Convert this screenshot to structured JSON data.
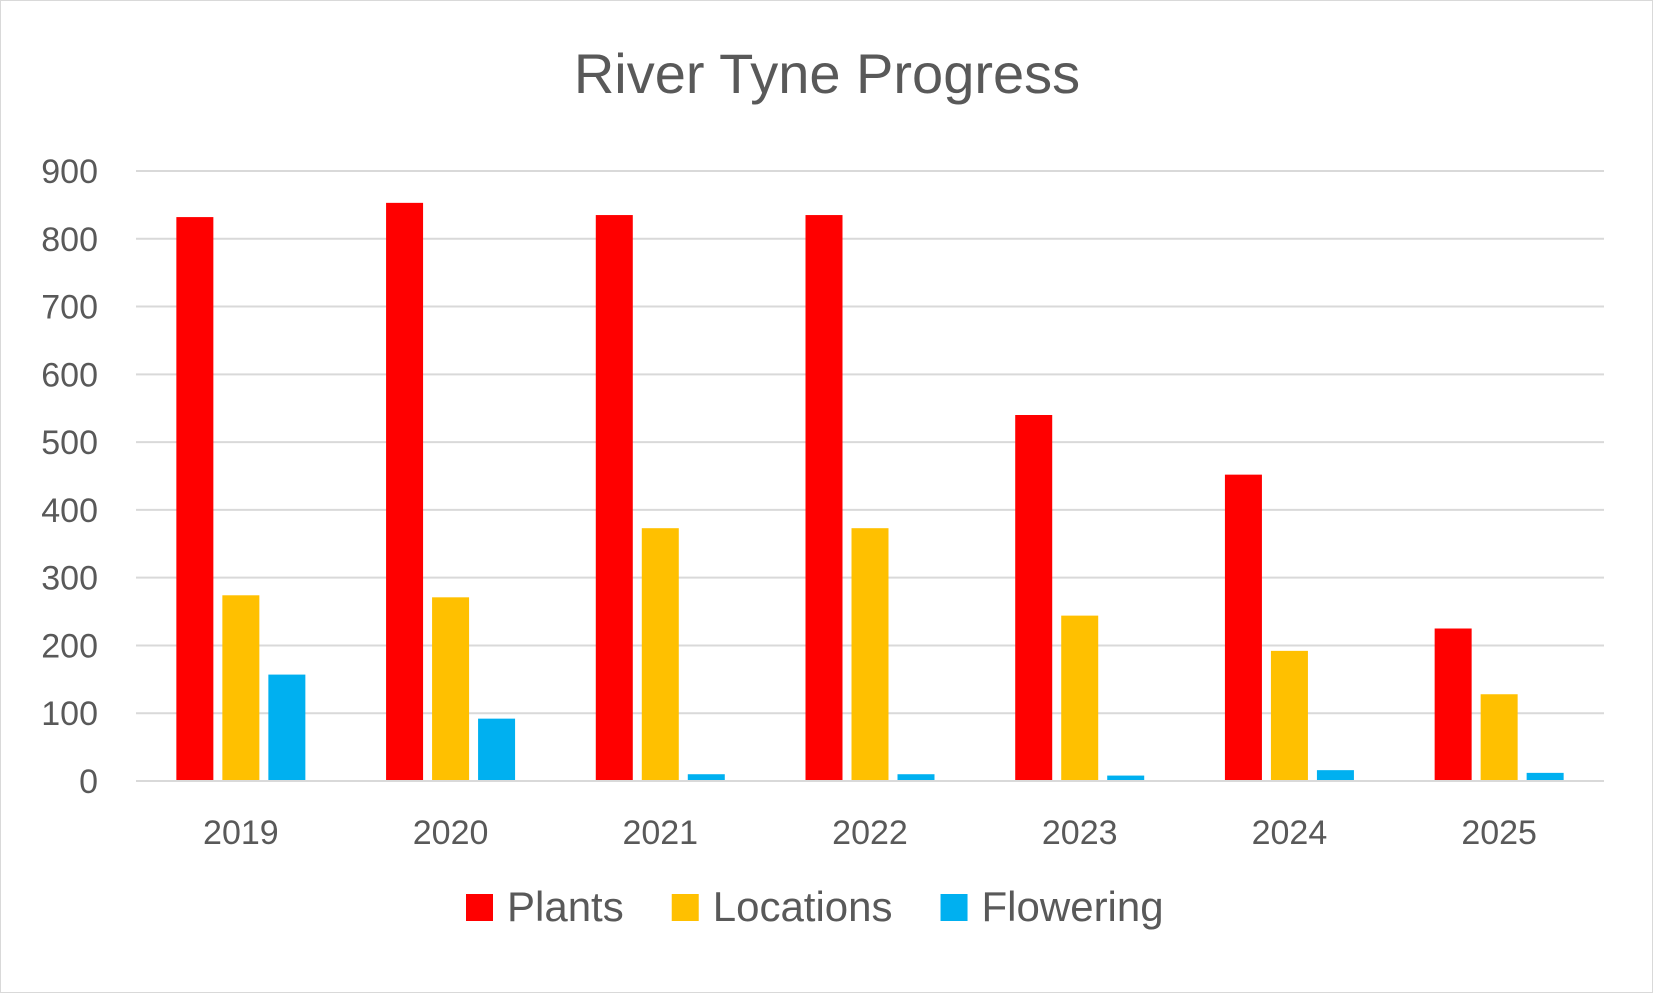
{
  "chart_data": {
    "type": "bar",
    "title": "River Tyne Progress",
    "xlabel": "",
    "ylabel": "",
    "categories": [
      "2019",
      "2020",
      "2021",
      "2022",
      "2023",
      "2024",
      "2025"
    ],
    "y_ticks": [
      "0",
      "100",
      "200",
      "300",
      "400",
      "500",
      "600",
      "700",
      "800",
      "900"
    ],
    "ylim": [
      0,
      900
    ],
    "grid": true,
    "legend_position": "bottom",
    "series": [
      {
        "name": "Plants",
        "color": "#ff0000",
        "values": [
          832,
          853,
          835,
          835,
          540,
          452,
          225
        ]
      },
      {
        "name": "Locations",
        "color": "#ffc000",
        "values": [
          274,
          271,
          373,
          373,
          244,
          192,
          128
        ]
      },
      {
        "name": "Flowering",
        "color": "#00b0f0",
        "values": [
          157,
          92,
          10,
          10,
          8,
          16,
          12
        ]
      }
    ]
  }
}
